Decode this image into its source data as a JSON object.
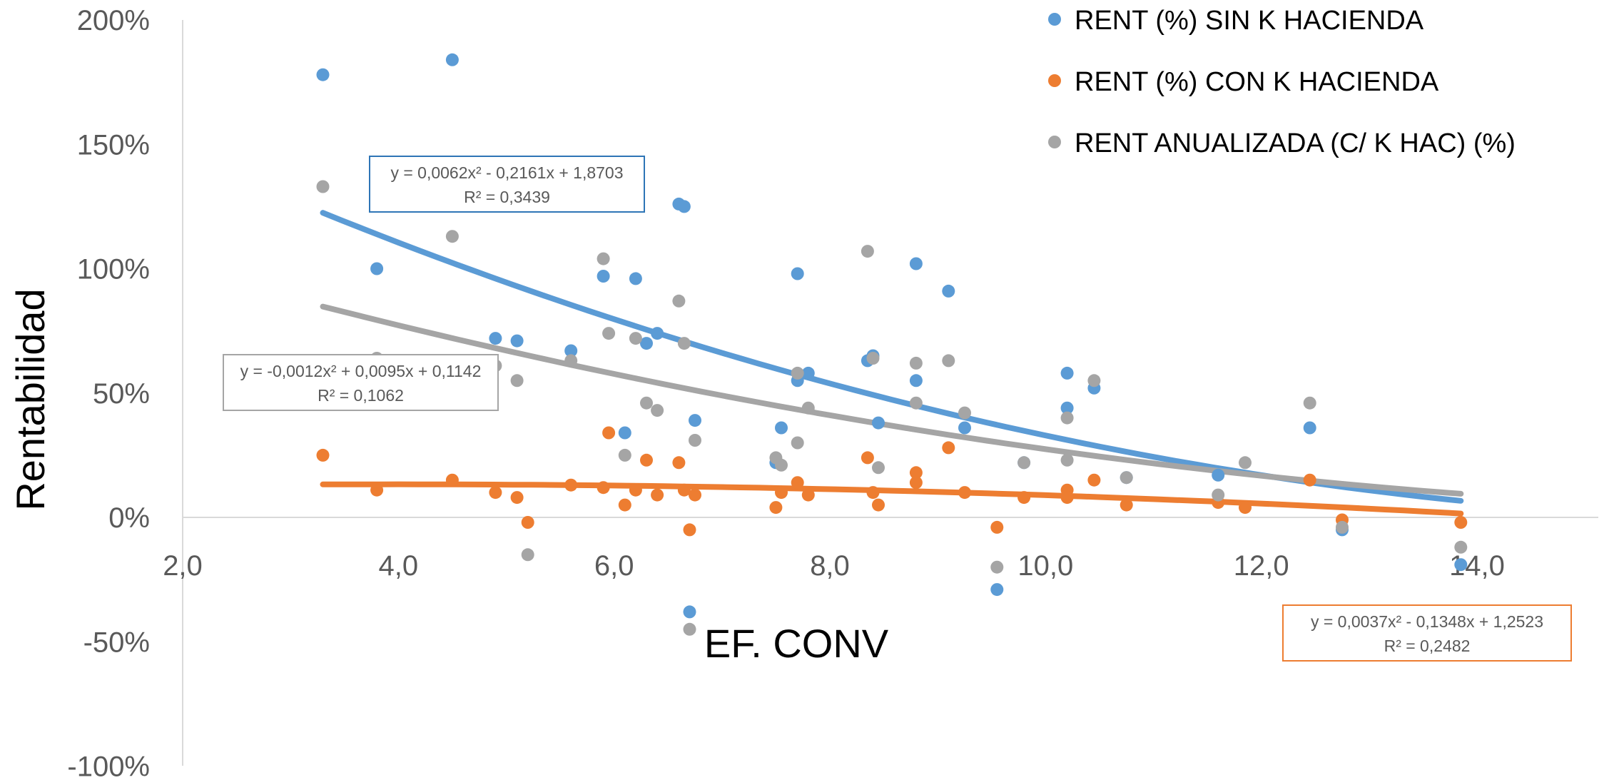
{
  "chart_data": {
    "type": "scatter",
    "xlabel": "EF. CONV",
    "ylabel": "Rentabilidad",
    "xlim": [
      2.0,
      15.0
    ],
    "ylim": [
      -1.0,
      2.0
    ],
    "x_ticks": [
      "2,0",
      "4,0",
      "6,0",
      "8,0",
      "10,0",
      "12,0",
      "14,0"
    ],
    "x_tick_values": [
      2,
      4,
      6,
      8,
      10,
      12,
      14
    ],
    "y_ticks": [
      "200%",
      "150%",
      "100%",
      "50%",
      "0%",
      "-50%",
      "-100%"
    ],
    "y_tick_values": [
      2.0,
      1.5,
      1.0,
      0.5,
      0.0,
      -0.5,
      -1.0
    ],
    "grid": false,
    "legend_position": "top-right",
    "series": [
      {
        "name": "RENT (%) SIN K HACIENDA",
        "color": "#5B9BD5",
        "points": [
          [
            3.3,
            1.78
          ],
          [
            3.8,
            1.0
          ],
          [
            4.5,
            1.84
          ],
          [
            4.9,
            0.72
          ],
          [
            5.1,
            0.71
          ],
          [
            5.6,
            0.67
          ],
          [
            5.9,
            0.97
          ],
          [
            6.1,
            0.34
          ],
          [
            6.2,
            0.96
          ],
          [
            6.3,
            0.7
          ],
          [
            6.4,
            0.74
          ],
          [
            6.6,
            1.26
          ],
          [
            6.65,
            1.25
          ],
          [
            6.7,
            -0.38
          ],
          [
            6.75,
            0.39
          ],
          [
            7.55,
            0.36
          ],
          [
            7.5,
            0.22
          ],
          [
            7.7,
            0.98
          ],
          [
            7.7,
            0.55
          ],
          [
            7.8,
            0.58
          ],
          [
            8.35,
            0.63
          ],
          [
            8.4,
            0.65
          ],
          [
            8.45,
            0.38
          ],
          [
            8.8,
            1.02
          ],
          [
            8.8,
            0.55
          ],
          [
            9.1,
            0.91
          ],
          [
            9.25,
            0.36
          ],
          [
            9.55,
            -0.29
          ],
          [
            9.8,
            0.22
          ],
          [
            10.2,
            0.58
          ],
          [
            10.2,
            0.44
          ],
          [
            10.45,
            0.52
          ],
          [
            10.75,
            0.16
          ],
          [
            11.6,
            0.17
          ],
          [
            12.45,
            0.36
          ],
          [
            12.75,
            -0.05
          ],
          [
            13.85,
            -0.19
          ]
        ],
        "trendline": {
          "a": 0.0062,
          "b": -0.2161,
          "c": 1.8703,
          "x_range": [
            3.3,
            13.85
          ],
          "equation": "y = 0,0062x² - 0,2161x + 1,8703",
          "r2": "R² = 0,3439"
        }
      },
      {
        "name": "RENT (%) CON K HACIENDA",
        "color": "#ED7D31",
        "points": [
          [
            3.3,
            0.25
          ],
          [
            3.8,
            0.11
          ],
          [
            4.5,
            0.15
          ],
          [
            4.9,
            0.1
          ],
          [
            5.1,
            0.08
          ],
          [
            5.2,
            -0.02
          ],
          [
            5.6,
            0.13
          ],
          [
            5.9,
            0.12
          ],
          [
            5.95,
            0.34
          ],
          [
            6.1,
            0.05
          ],
          [
            6.2,
            0.11
          ],
          [
            6.3,
            0.23
          ],
          [
            6.4,
            0.09
          ],
          [
            6.6,
            0.22
          ],
          [
            6.65,
            0.11
          ],
          [
            6.7,
            -0.05
          ],
          [
            6.75,
            0.09
          ],
          [
            7.5,
            0.04
          ],
          [
            7.55,
            0.1
          ],
          [
            7.7,
            0.14
          ],
          [
            7.8,
            0.09
          ],
          [
            8.35,
            0.24
          ],
          [
            8.4,
            0.1
          ],
          [
            8.45,
            0.05
          ],
          [
            8.8,
            0.14
          ],
          [
            8.8,
            0.18
          ],
          [
            9.1,
            0.28
          ],
          [
            9.25,
            0.1
          ],
          [
            9.55,
            -0.04
          ],
          [
            9.8,
            0.08
          ],
          [
            10.2,
            0.11
          ],
          [
            10.2,
            0.08
          ],
          [
            10.45,
            0.15
          ],
          [
            10.75,
            0.05
          ],
          [
            11.6,
            0.06
          ],
          [
            11.85,
            0.04
          ],
          [
            12.45,
            0.15
          ],
          [
            12.75,
            -0.01
          ],
          [
            13.85,
            -0.02
          ]
        ],
        "trendline": {
          "a": -0.0012,
          "b": 0.0095,
          "c": 0.1142,
          "x_range": [
            3.3,
            13.85
          ],
          "equation": "y = -0,0012x² + 0,0095x + 0,1142",
          "r2": "R² = 0,1062"
        }
      },
      {
        "name": "RENT ANUALIZADA (C/ K HAC) (%)",
        "color": "#A5A5A5",
        "points": [
          [
            3.3,
            1.33
          ],
          [
            3.8,
            0.64
          ],
          [
            4.5,
            1.13
          ],
          [
            4.9,
            0.61
          ],
          [
            5.1,
            0.55
          ],
          [
            5.2,
            -0.15
          ],
          [
            5.6,
            0.63
          ],
          [
            5.9,
            1.04
          ],
          [
            5.95,
            0.74
          ],
          [
            6.1,
            0.25
          ],
          [
            6.2,
            0.72
          ],
          [
            6.3,
            0.46
          ],
          [
            6.4,
            0.43
          ],
          [
            6.6,
            0.87
          ],
          [
            6.65,
            0.7
          ],
          [
            6.7,
            -0.45
          ],
          [
            6.75,
            0.31
          ],
          [
            7.5,
            0.24
          ],
          [
            7.55,
            0.21
          ],
          [
            7.7,
            0.3
          ],
          [
            7.7,
            0.58
          ],
          [
            7.8,
            0.44
          ],
          [
            8.35,
            1.07
          ],
          [
            8.4,
            0.64
          ],
          [
            8.45,
            0.2
          ],
          [
            8.8,
            0.62
          ],
          [
            8.8,
            0.46
          ],
          [
            9.1,
            0.63
          ],
          [
            9.25,
            0.42
          ],
          [
            9.55,
            -0.2
          ],
          [
            9.8,
            0.22
          ],
          [
            10.2,
            0.23
          ],
          [
            10.2,
            0.4
          ],
          [
            10.45,
            0.55
          ],
          [
            10.75,
            0.16
          ],
          [
            11.6,
            0.09
          ],
          [
            11.85,
            0.22
          ],
          [
            12.45,
            0.46
          ],
          [
            12.75,
            -0.04
          ],
          [
            13.85,
            -0.12
          ]
        ],
        "trendline": {
          "a": 0.0037,
          "b": -0.1348,
          "c": 1.2523,
          "x_range": [
            3.3,
            13.85
          ],
          "equation": "y = 0,0037x² - 0,1348x + 1,2523",
          "r2": "R² = 0,2482"
        }
      }
    ]
  }
}
